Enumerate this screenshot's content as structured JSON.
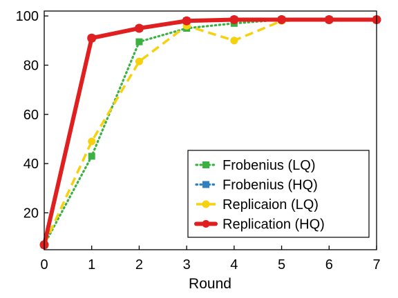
{
  "chart_data": {
    "type": "line",
    "xlabel": "Round",
    "ylabel": "",
    "xlim": [
      0,
      7
    ],
    "ylim": [
      5,
      102
    ],
    "x_ticks": [
      0,
      1,
      2,
      3,
      4,
      5,
      6,
      7
    ],
    "y_ticks": [
      20,
      40,
      60,
      80,
      100
    ],
    "grid": false,
    "legend_position": "bottom-right",
    "series": [
      {
        "name": "Frobenius (LQ)",
        "color": "#3cb043",
        "line_style": "dotted",
        "marker": "square",
        "x": [
          0,
          1,
          2,
          3,
          4,
          5,
          6,
          7
        ],
        "values": [
          7,
          43,
          89.5,
          95,
          97,
          98.5,
          98.5,
          98.5
        ]
      },
      {
        "name": "Frobenius (HQ)",
        "color": "#2f7fc1",
        "line_style": "dotted",
        "marker": "square",
        "x": [
          0,
          1,
          2,
          3,
          4,
          5,
          6,
          7
        ],
        "values": [
          7,
          91,
          95,
          98,
          98.5,
          98.5,
          98.5,
          98.5
        ]
      },
      {
        "name": "Replicaion (LQ)",
        "color": "#f5d10f",
        "line_style": "dashed",
        "marker": "circle",
        "x": [
          0,
          1,
          2,
          3,
          4,
          5,
          6,
          7
        ],
        "values": [
          7,
          49,
          81.5,
          96,
          90,
          98,
          98.5,
          98.5
        ]
      },
      {
        "name": "Replication (HQ)",
        "color": "#e02020",
        "line_style": "solid",
        "marker": "circle",
        "x": [
          0,
          1,
          2,
          3,
          4,
          5,
          6,
          7
        ],
        "values": [
          7,
          91,
          95,
          98,
          98.5,
          98.5,
          98.5,
          98.5
        ]
      }
    ]
  }
}
